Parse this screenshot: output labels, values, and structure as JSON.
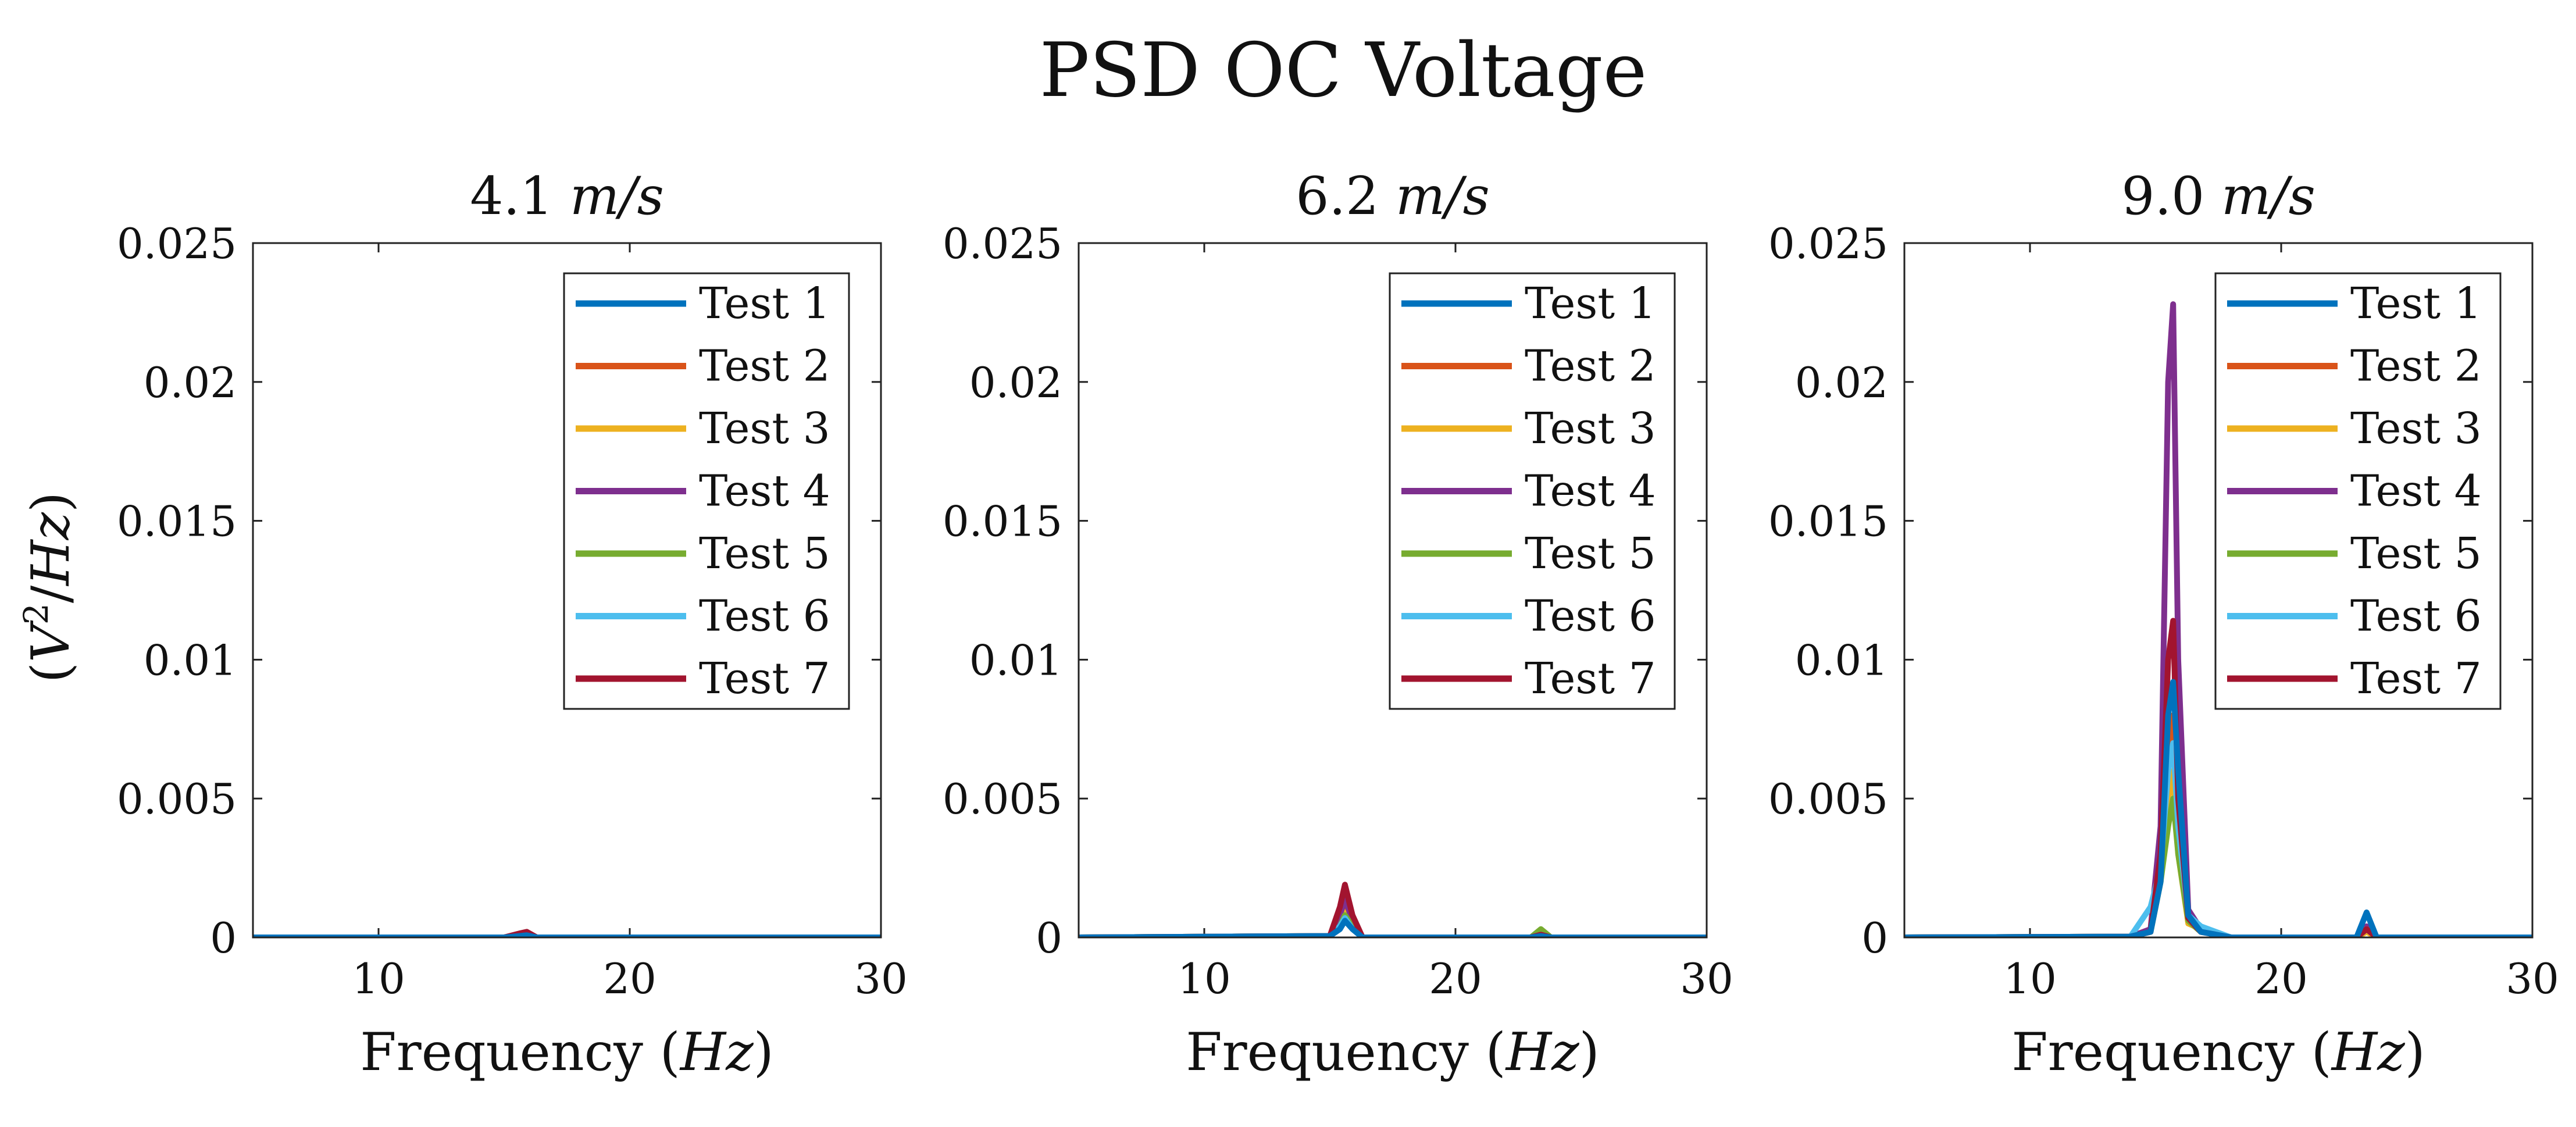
{
  "figure_title": "PSD OC Voltage",
  "shared_ylabel": "(V²/Hz)",
  "ylabel_parts": {
    "open": "(",
    "v": "V",
    "sup": "2",
    "slash": "/",
    "hz": "Hz",
    "close": ")"
  },
  "colors": {
    "Test 1": "#0072BD",
    "Test 2": "#D95319",
    "Test 3": "#EDB120",
    "Test 4": "#7E2F8E",
    "Test 5": "#77AC30",
    "Test 6": "#4DBEEE",
    "Test 7": "#A2142F"
  },
  "chart_data": [
    {
      "type": "line",
      "title": "4.1 m/s",
      "title_parts": {
        "num": "4.1",
        "unit": "m/s"
      },
      "xlabel": "Frequency (Hz)",
      "xlabel_parts": {
        "word": "Frequency",
        "open": "(",
        "unit": "Hz",
        "close": ")"
      },
      "ylabel": "(V²/Hz)",
      "xlim": [
        5,
        30
      ],
      "ylim": [
        0,
        0.025
      ],
      "xticks": [
        10,
        20,
        30
      ],
      "xtick_labels": [
        "10",
        "20",
        "30"
      ],
      "yticks": [
        0,
        0.005,
        0.01,
        0.015,
        0.02,
        0.025
      ],
      "ytick_labels": [
        "0",
        "0.005",
        "0.01",
        "0.015",
        "0.02",
        "0.025"
      ],
      "legend": [
        "Test 1",
        "Test 2",
        "Test 3",
        "Test 4",
        "Test 5",
        "Test 6",
        "Test 7"
      ],
      "legend_position": "top-right",
      "series": [
        {
          "name": "Test 1",
          "x": [
            5,
            15.0,
            15.6,
            15.9,
            16.3,
            30
          ],
          "y": [
            0,
            0,
            5e-05,
            8e-05,
            0,
            0
          ]
        },
        {
          "name": "Test 2",
          "x": [
            5,
            15.0,
            15.6,
            15.9,
            16.3,
            30
          ],
          "y": [
            0,
            0,
            0.0001,
            0.00015,
            0,
            0
          ]
        },
        {
          "name": "Test 3",
          "x": [
            5,
            15.0,
            15.6,
            15.9,
            16.3,
            30
          ],
          "y": [
            0,
            0,
            8e-05,
            0.00012,
            0,
            0
          ]
        },
        {
          "name": "Test 4",
          "x": [
            5,
            15.0,
            15.6,
            15.9,
            16.3,
            30
          ],
          "y": [
            0,
            0,
            6e-05,
            0.0001,
            0,
            0
          ]
        },
        {
          "name": "Test 5",
          "x": [
            5,
            15.0,
            15.6,
            15.9,
            16.3,
            30
          ],
          "y": [
            0,
            0,
            5e-05,
            9e-05,
            0,
            0
          ]
        },
        {
          "name": "Test 6",
          "x": [
            5,
            15.0,
            15.6,
            15.9,
            16.3,
            30
          ],
          "y": [
            0,
            0,
            6e-05,
            0.0001,
            0,
            0
          ]
        },
        {
          "name": "Test 7",
          "x": [
            5,
            15.0,
            15.6,
            15.9,
            16.3,
            30
          ],
          "y": [
            0,
            0,
            0.00014,
            0.0002,
            0,
            0
          ]
        }
      ]
    },
    {
      "type": "line",
      "title": "6.2 m/s",
      "title_parts": {
        "num": "6.2",
        "unit": "m/s"
      },
      "xlabel": "Frequency (Hz)",
      "xlabel_parts": {
        "word": "Frequency",
        "open": "(",
        "unit": "Hz",
        "close": ")"
      },
      "ylabel": "(V²/Hz)",
      "xlim": [
        5,
        30
      ],
      "ylim": [
        0,
        0.025
      ],
      "xticks": [
        10,
        20,
        30
      ],
      "xtick_labels": [
        "10",
        "20",
        "30"
      ],
      "yticks": [
        0,
        0.005,
        0.01,
        0.015,
        0.02,
        0.025
      ],
      "ytick_labels": [
        "0",
        "0.005",
        "0.01",
        "0.015",
        "0.02",
        "0.025"
      ],
      "legend": [
        "Test 1",
        "Test 2",
        "Test 3",
        "Test 4",
        "Test 5",
        "Test 6",
        "Test 7"
      ],
      "legend_position": "top-right",
      "series": [
        {
          "name": "Test 1",
          "x": [
            5,
            15.0,
            15.4,
            15.6,
            15.9,
            16.3,
            23.0,
            23.4,
            23.8,
            30
          ],
          "y": [
            0,
            5e-05,
            0.0003,
            0.0006,
            0.0003,
            0,
            0,
            5e-05,
            0,
            0
          ]
        },
        {
          "name": "Test 2",
          "x": [
            5,
            15.0,
            15.4,
            15.6,
            15.9,
            16.3,
            23.0,
            23.4,
            23.8,
            30
          ],
          "y": [
            0,
            5e-05,
            0.0007,
            0.0012,
            0.0006,
            0,
            0,
            0.0001,
            0,
            0
          ]
        },
        {
          "name": "Test 3",
          "x": [
            5,
            15.0,
            15.4,
            15.6,
            15.9,
            16.3,
            23.0,
            23.4,
            23.8,
            30
          ],
          "y": [
            0,
            5e-05,
            0.0005,
            0.0009,
            0.0004,
            0,
            0,
            0.00015,
            0,
            0
          ]
        },
        {
          "name": "Test 4",
          "x": [
            5,
            15.0,
            15.4,
            15.6,
            15.9,
            16.3,
            23.0,
            23.4,
            23.8,
            30
          ],
          "y": [
            0,
            5e-05,
            0.0008,
            0.0014,
            0.0006,
            0,
            0,
            0.0001,
            0,
            0
          ]
        },
        {
          "name": "Test 5",
          "x": [
            5,
            15.0,
            15.4,
            15.6,
            15.9,
            16.3,
            23.0,
            23.4,
            23.8,
            30
          ],
          "y": [
            0,
            5e-05,
            0.0004,
            0.0008,
            0.0004,
            0,
            0,
            0.0003,
            0,
            0
          ]
        },
        {
          "name": "Test 6",
          "x": [
            5,
            15.0,
            15.4,
            15.6,
            15.9,
            16.3,
            23.0,
            23.4,
            23.8,
            30
          ],
          "y": [
            0,
            5e-05,
            0.0004,
            0.0007,
            0.0003,
            0,
            0,
            0.0001,
            0,
            0
          ]
        },
        {
          "name": "Test 7",
          "x": [
            5,
            15.0,
            15.4,
            15.6,
            15.9,
            16.3,
            23.0,
            23.4,
            23.8,
            30
          ],
          "y": [
            0,
            5e-05,
            0.0011,
            0.0019,
            0.0008,
            0,
            0,
            0.0001,
            0,
            0
          ]
        }
      ]
    },
    {
      "type": "line",
      "title": "9.0 m/s",
      "title_parts": {
        "num": "9.0",
        "unit": "m/s"
      },
      "xlabel": "Frequency (Hz)",
      "xlabel_parts": {
        "word": "Frequency",
        "open": "(",
        "unit": "Hz",
        "close": ")"
      },
      "ylabel": "(V²/Hz)",
      "xlim": [
        5,
        30
      ],
      "ylim": [
        0,
        0.025
      ],
      "xticks": [
        10,
        20,
        30
      ],
      "xtick_labels": [
        "10",
        "20",
        "30"
      ],
      "yticks": [
        0,
        0.005,
        0.01,
        0.015,
        0.02,
        0.025
      ],
      "ytick_labels": [
        "0",
        "0.005",
        "0.01",
        "0.015",
        "0.02",
        "0.025"
      ],
      "legend": [
        "Test 1",
        "Test 2",
        "Test 3",
        "Test 4",
        "Test 5",
        "Test 6",
        "Test 7"
      ],
      "legend_position": "top-right",
      "series": [
        {
          "name": "Test 1",
          "x": [
            5,
            14.0,
            14.8,
            15.2,
            15.5,
            15.7,
            15.9,
            16.3,
            16.8,
            18.0,
            23.0,
            23.4,
            23.8,
            30
          ],
          "y": [
            0,
            3e-05,
            0.0002,
            0.002,
            0.008,
            0.0092,
            0.006,
            0.0008,
            0.0002,
            0,
            0,
            0.0009,
            0,
            0
          ]
        },
        {
          "name": "Test 2",
          "x": [
            5,
            14.0,
            14.8,
            15.2,
            15.5,
            15.7,
            15.9,
            16.3,
            16.8,
            18.0,
            23.0,
            23.4,
            23.8,
            30
          ],
          "y": [
            0,
            3e-05,
            0.0002,
            0.003,
            0.007,
            0.008,
            0.004,
            0.0006,
            0.0003,
            0,
            0,
            0.0003,
            0,
            0
          ]
        },
        {
          "name": "Test 3",
          "x": [
            5,
            14.0,
            14.8,
            15.2,
            15.5,
            15.7,
            15.9,
            16.3,
            16.8,
            18.0,
            23.0,
            23.4,
            23.8,
            30
          ],
          "y": [
            0,
            3e-05,
            0.0002,
            0.002,
            0.005,
            0.006,
            0.003,
            0.0005,
            0.0003,
            0,
            0,
            0.0002,
            0,
            0
          ]
        },
        {
          "name": "Test 4",
          "x": [
            5,
            14.0,
            14.8,
            15.2,
            15.5,
            15.7,
            15.9,
            16.3,
            16.8,
            18.0,
            23.0,
            23.4,
            23.8,
            30
          ],
          "y": [
            0,
            3e-05,
            0.0003,
            0.004,
            0.02,
            0.0228,
            0.01,
            0.001,
            0.0003,
            0,
            0,
            0.0004,
            0,
            0
          ]
        },
        {
          "name": "Test 5",
          "x": [
            5,
            14.0,
            14.8,
            15.2,
            15.5,
            15.7,
            15.9,
            16.3,
            16.8,
            18.0,
            23.0,
            23.4,
            23.8,
            30
          ],
          "y": [
            0,
            3e-05,
            0.0002,
            0.002,
            0.004,
            0.005,
            0.003,
            0.0006,
            0.0002,
            0,
            0,
            0.0003,
            0,
            0
          ]
        },
        {
          "name": "Test 6",
          "x": [
            5,
            14.0,
            14.8,
            15.2,
            15.5,
            15.7,
            15.9,
            16.3,
            16.8,
            18.0,
            23.0,
            23.4,
            23.8,
            30
          ],
          "y": [
            0,
            3e-05,
            0.0011,
            0.0025,
            0.006,
            0.007,
            0.004,
            0.0008,
            0.0004,
            0,
            0,
            0.0003,
            0,
            0
          ]
        },
        {
          "name": "Test 7",
          "x": [
            5,
            14.0,
            14.8,
            15.2,
            15.5,
            15.7,
            15.9,
            16.3,
            16.8,
            18.0,
            23.0,
            23.4,
            23.8,
            30
          ],
          "y": [
            0,
            3e-05,
            0.0002,
            0.003,
            0.01,
            0.0114,
            0.005,
            0.0007,
            0.0002,
            0,
            0,
            0.0003,
            0,
            0
          ]
        }
      ]
    }
  ]
}
